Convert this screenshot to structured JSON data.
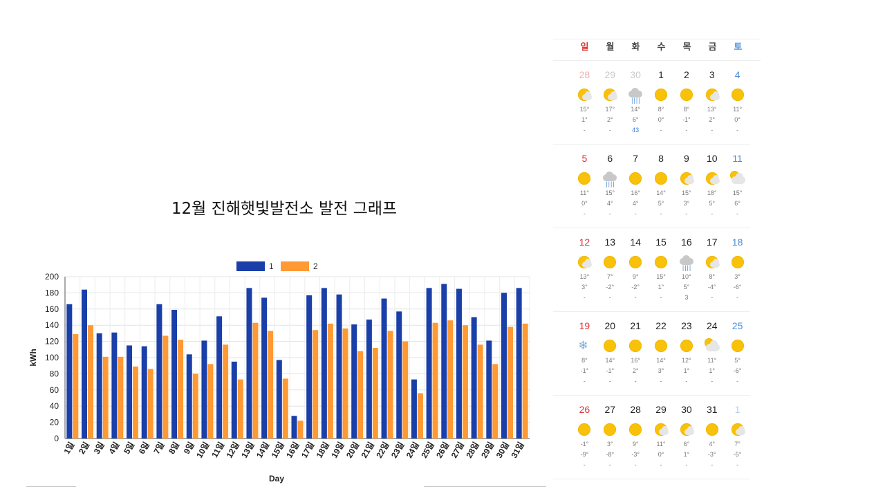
{
  "chart_data": {
    "type": "bar",
    "title": "12월 진해햇빛발전소 발전 그래프",
    "xlabel": "Day",
    "ylabel": "kWh",
    "ylim": [
      0,
      200
    ],
    "yticks": [
      0,
      20,
      40,
      60,
      80,
      100,
      120,
      140,
      160,
      180,
      200
    ],
    "grid": true,
    "legend_position": "top",
    "categories": [
      "1일",
      "2일",
      "3일",
      "4일",
      "5일",
      "6일",
      "7일",
      "8일",
      "9일",
      "10일",
      "11일",
      "12일",
      "13일",
      "14일",
      "15일",
      "16일",
      "17일",
      "18일",
      "19일",
      "20일",
      "21일",
      "22일",
      "23일",
      "24일",
      "25일",
      "26일",
      "27일",
      "28일",
      "29일",
      "30일",
      "31일"
    ],
    "series": [
      {
        "name": "1",
        "color": "#1a3fa8",
        "values": [
          166,
          184,
          130,
          131,
          115,
          114,
          166,
          159,
          104,
          121,
          151,
          95,
          186,
          174,
          97,
          28,
          177,
          186,
          178,
          141,
          147,
          173,
          157,
          73,
          186,
          191,
          185,
          150,
          121,
          180,
          186
        ]
      },
      {
        "name": "2",
        "color": "#ff9933",
        "values": [
          129,
          140,
          101,
          101,
          89,
          86,
          127,
          122,
          80,
          92,
          116,
          73,
          143,
          133,
          74,
          22,
          134,
          142,
          136,
          108,
          112,
          133,
          120,
          56,
          143,
          146,
          140,
          116,
          92,
          138,
          142
        ]
      }
    ]
  },
  "calendar": {
    "weekdays": [
      "일",
      "월",
      "화",
      "수",
      "목",
      "금",
      "토"
    ],
    "weeks": [
      [
        {
          "day": "28",
          "icon": "partly-cloudy-icon",
          "hi": "15°",
          "lo": "1°",
          "rain": "-",
          "muted": true
        },
        {
          "day": "29",
          "icon": "partly-cloudy-icon",
          "hi": "17°",
          "lo": "2°",
          "rain": "-",
          "muted": true
        },
        {
          "day": "30",
          "icon": "rain-icon",
          "hi": "14°",
          "lo": "6°",
          "rain": "43",
          "muted": true
        },
        {
          "day": "1",
          "icon": "sunny-icon",
          "hi": "8°",
          "lo": "0°",
          "rain": "-"
        },
        {
          "day": "2",
          "icon": "sunny-icon",
          "hi": "8°",
          "lo": "-1°",
          "rain": "-"
        },
        {
          "day": "3",
          "icon": "partly-cloudy-icon",
          "hi": "13°",
          "lo": "2°",
          "rain": "-"
        },
        {
          "day": "4",
          "icon": "sunny-icon",
          "hi": "11°",
          "lo": "0°",
          "rain": "-"
        }
      ],
      [
        {
          "day": "5",
          "icon": "sunny-icon",
          "hi": "11°",
          "lo": "0°",
          "rain": "-"
        },
        {
          "day": "6",
          "icon": "rain-icon",
          "hi": "15°",
          "lo": "4°",
          "rain": "-"
        },
        {
          "day": "7",
          "icon": "sunny-icon",
          "hi": "16°",
          "lo": "4°",
          "rain": "-"
        },
        {
          "day": "8",
          "icon": "sunny-icon",
          "hi": "14°",
          "lo": "5°",
          "rain": "-"
        },
        {
          "day": "9",
          "icon": "partly-cloudy-icon",
          "hi": "15°",
          "lo": "3°",
          "rain": "-"
        },
        {
          "day": "10",
          "icon": "partly-cloudy-icon",
          "hi": "18°",
          "lo": "5°",
          "rain": "-"
        },
        {
          "day": "11",
          "icon": "mostly-cloudy-icon",
          "hi": "15°",
          "lo": "6°",
          "rain": "-"
        }
      ],
      [
        {
          "day": "12",
          "icon": "partly-cloudy-icon",
          "hi": "13°",
          "lo": "3°",
          "rain": "-"
        },
        {
          "day": "13",
          "icon": "sunny-icon",
          "hi": "7°",
          "lo": "-2°",
          "rain": "-"
        },
        {
          "day": "14",
          "icon": "sunny-icon",
          "hi": "9°",
          "lo": "-2°",
          "rain": "-"
        },
        {
          "day": "15",
          "icon": "sunny-icon",
          "hi": "15°",
          "lo": "1°",
          "rain": "-"
        },
        {
          "day": "16",
          "icon": "rain-icon",
          "hi": "10°",
          "lo": "5°",
          "rain": "3"
        },
        {
          "day": "17",
          "icon": "partly-cloudy-icon",
          "hi": "8°",
          "lo": "-4°",
          "rain": "-"
        },
        {
          "day": "18",
          "icon": "sunny-icon",
          "hi": "3°",
          "lo": "-6°",
          "rain": "-"
        }
      ],
      [
        {
          "day": "19",
          "icon": "snow-icon",
          "hi": "8°",
          "lo": "-1°",
          "rain": "-"
        },
        {
          "day": "20",
          "icon": "sunny-icon",
          "hi": "14°",
          "lo": "-1°",
          "rain": "-"
        },
        {
          "day": "21",
          "icon": "sunny-icon",
          "hi": "16°",
          "lo": "2°",
          "rain": "-"
        },
        {
          "day": "22",
          "icon": "sunny-icon",
          "hi": "14°",
          "lo": "3°",
          "rain": "-"
        },
        {
          "day": "23",
          "icon": "sunny-icon",
          "hi": "12°",
          "lo": "1°",
          "rain": "-"
        },
        {
          "day": "24",
          "icon": "mostly-cloudy-icon",
          "hi": "11°",
          "lo": "1°",
          "rain": "-"
        },
        {
          "day": "25",
          "icon": "sunny-icon",
          "hi": "5°",
          "lo": "-6°",
          "rain": "-"
        }
      ],
      [
        {
          "day": "26",
          "icon": "sunny-icon",
          "hi": "-1°",
          "lo": "-9°",
          "rain": "-"
        },
        {
          "day": "27",
          "icon": "sunny-icon",
          "hi": "3°",
          "lo": "-8°",
          "rain": "-"
        },
        {
          "day": "28",
          "icon": "sunny-icon",
          "hi": "9°",
          "lo": "-3°",
          "rain": "-"
        },
        {
          "day": "29",
          "icon": "partly-cloudy-icon",
          "hi": "11°",
          "lo": "0°",
          "rain": "-"
        },
        {
          "day": "30",
          "icon": "partly-cloudy-icon",
          "hi": "6°",
          "lo": "1°",
          "rain": "-"
        },
        {
          "day": "31",
          "icon": "sunny-icon",
          "hi": "4°",
          "lo": "-3°",
          "rain": "-"
        },
        {
          "day": "1",
          "icon": "partly-cloudy-icon",
          "hi": "7°",
          "lo": "-5°",
          "rain": "-",
          "muted": true
        }
      ]
    ]
  }
}
